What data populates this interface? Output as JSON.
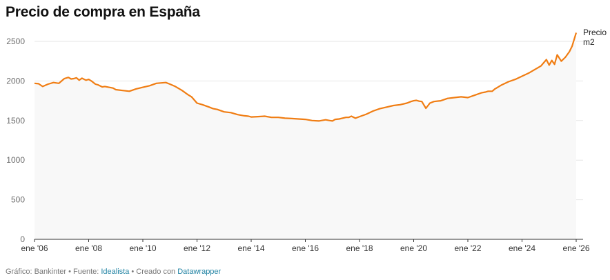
{
  "title": "Precio de compra en España",
  "footer": {
    "prefix": "Gráfico: Bankinter • Fuente: ",
    "source_link": "Idealista",
    "middle": " • Creado con ",
    "tool_link": "Datawrapper"
  },
  "colors": {
    "line": "#f07d13",
    "area": "#f8f8f8",
    "grid": "#e6e6e6",
    "axis": "#333333"
  },
  "chart_data": {
    "type": "line",
    "title": "Precio de compra en España",
    "xlabel": "",
    "ylabel": "",
    "ylim": [
      0,
      2600
    ],
    "xlim": [
      2006.0,
      2026.0
    ],
    "grid": true,
    "yticks": [
      0,
      500,
      1000,
      1500,
      2000,
      2500
    ],
    "xticks": [
      {
        "value": 2006,
        "label": "ene '06"
      },
      {
        "value": 2008,
        "label": "ene '08"
      },
      {
        "value": 2010,
        "label": "ene '10"
      },
      {
        "value": 2012,
        "label": "ene '12"
      },
      {
        "value": 2014,
        "label": "ene '14"
      },
      {
        "value": 2016,
        "label": "ene '16"
      },
      {
        "value": 2018,
        "label": "ene '18"
      },
      {
        "value": 2020,
        "label": "ene '20"
      },
      {
        "value": 2022,
        "label": "ene '22"
      },
      {
        "value": 2024,
        "label": "ene '24"
      },
      {
        "value": 2026,
        "label": "ene '26"
      }
    ],
    "series": [
      {
        "name": "Precio m2",
        "x": [
          2006.0,
          2006.15,
          2006.3,
          2006.5,
          2006.7,
          2006.9,
          2007.0,
          2007.1,
          2007.25,
          2007.35,
          2007.45,
          2007.55,
          2007.65,
          2007.75,
          2007.9,
          2008.0,
          2008.1,
          2008.25,
          2008.35,
          2008.5,
          2008.6,
          2008.75,
          2008.9,
          2009.0,
          2009.25,
          2009.5,
          2009.75,
          2010.0,
          2010.25,
          2010.5,
          2010.65,
          2010.85,
          2011.0,
          2011.2,
          2011.45,
          2011.65,
          2011.8,
          2012.0,
          2012.2,
          2012.45,
          2012.6,
          2012.75,
          2013.0,
          2013.25,
          2013.5,
          2013.75,
          2013.9,
          2014.0,
          2014.25,
          2014.5,
          2014.75,
          2015.0,
          2015.25,
          2015.5,
          2015.75,
          2016.0,
          2016.25,
          2016.5,
          2016.75,
          2016.9,
          2017.0,
          2017.1,
          2017.25,
          2017.5,
          2017.6,
          2017.7,
          2017.85,
          2018.0,
          2018.25,
          2018.5,
          2018.75,
          2019.0,
          2019.25,
          2019.5,
          2019.75,
          2019.9,
          2020.0,
          2020.1,
          2020.2,
          2020.3,
          2020.45,
          2020.6,
          2020.75,
          2021.0,
          2021.25,
          2021.5,
          2021.75,
          2022.0,
          2022.25,
          2022.5,
          2022.65,
          2022.75,
          2022.9,
          2023.0,
          2023.25,
          2023.5,
          2023.75,
          2024.0,
          2024.25,
          2024.5,
          2024.6,
          2024.7,
          2024.8,
          2024.9,
          2025.0,
          2025.1,
          2025.2,
          2025.3,
          2025.45,
          2025.6,
          2025.75,
          2025.85,
          2026.0
        ],
        "values": [
          1970,
          1965,
          1930,
          1960,
          1980,
          1970,
          2000,
          2030,
          2045,
          2025,
          2030,
          2040,
          2010,
          2035,
          2010,
          2020,
          2000,
          1960,
          1950,
          1925,
          1930,
          1920,
          1910,
          1890,
          1880,
          1870,
          1900,
          1920,
          1940,
          1970,
          1975,
          1980,
          1960,
          1930,
          1880,
          1830,
          1800,
          1720,
          1700,
          1670,
          1650,
          1640,
          1610,
          1600,
          1575,
          1560,
          1555,
          1545,
          1550,
          1555,
          1540,
          1540,
          1530,
          1525,
          1520,
          1515,
          1500,
          1495,
          1510,
          1500,
          1495,
          1515,
          1520,
          1540,
          1540,
          1555,
          1530,
          1550,
          1580,
          1620,
          1650,
          1670,
          1690,
          1700,
          1720,
          1740,
          1750,
          1755,
          1745,
          1740,
          1655,
          1720,
          1740,
          1750,
          1780,
          1790,
          1800,
          1790,
          1820,
          1850,
          1860,
          1870,
          1870,
          1900,
          1950,
          1990,
          2020,
          2060,
          2100,
          2150,
          2170,
          2190,
          2230,
          2270,
          2200,
          2260,
          2210,
          2330,
          2250,
          2300,
          2370,
          2440,
          2610
        ]
      }
    ]
  }
}
